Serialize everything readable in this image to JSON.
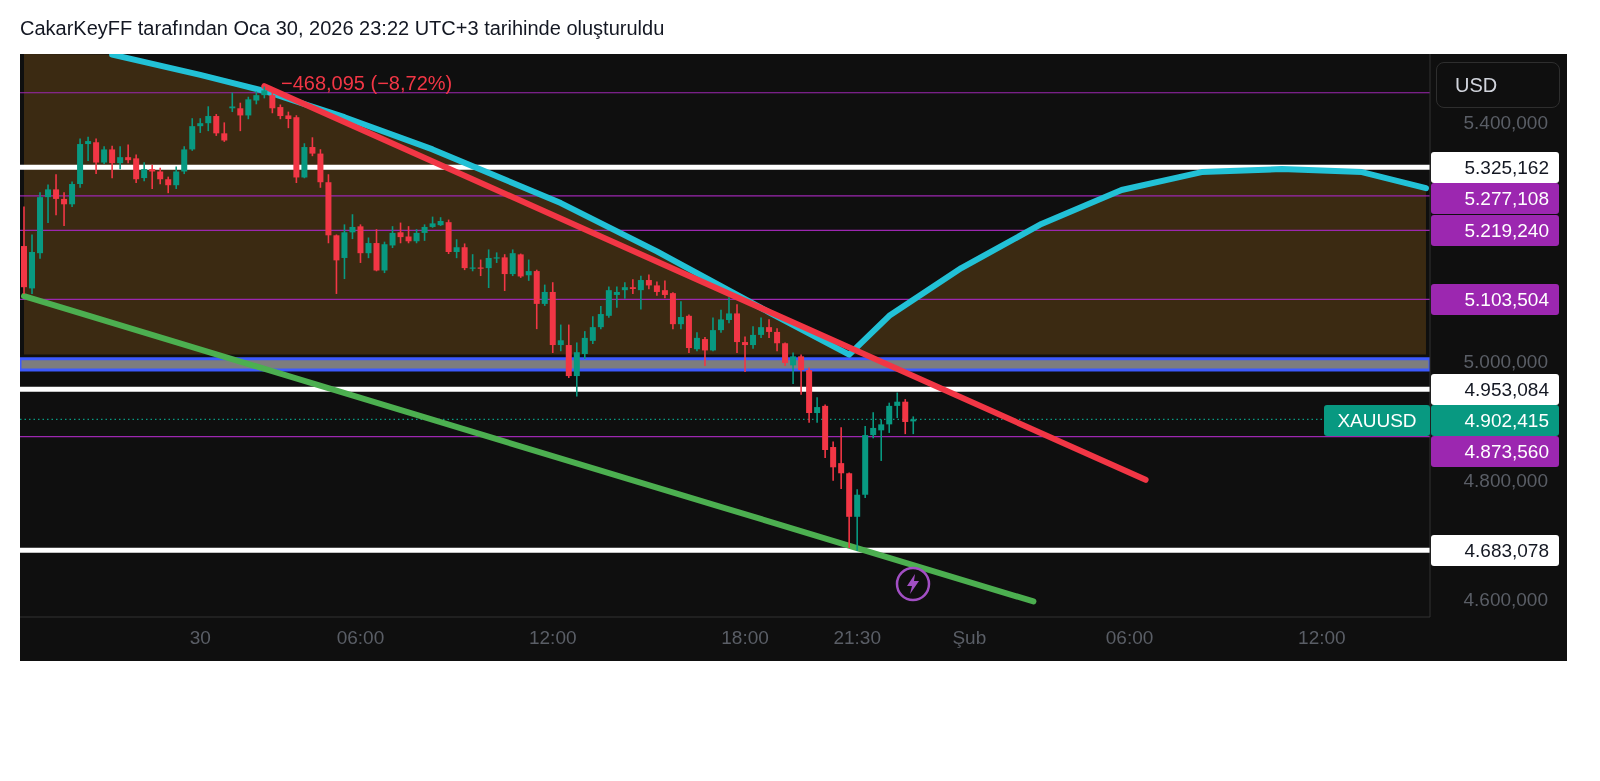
{
  "chart_data": {
    "type": "candlestick",
    "title": "CakarKeyFF tarafından Oca 30, 2026 23:22 UTC+3 tarihinde oluşturuldu",
    "annotations": [
      "−468,095 (−8,72%)",
      "USD"
    ],
    "categories": [
      null,
      null,
      null,
      null,
      null,
      null,
      null,
      null,
      null,
      null,
      null,
      null,
      null,
      null,
      null,
      null,
      null,
      null,
      null,
      null,
      null,
      null,
      "30",
      null,
      null,
      null,
      null,
      null,
      null,
      null,
      null,
      null,
      null,
      null,
      null,
      null,
      null,
      null,
      null,
      null,
      null,
      null,
      "06:00",
      null,
      null,
      null,
      null,
      null,
      null,
      null,
      null,
      null,
      null,
      null,
      null,
      null,
      null,
      null,
      null,
      null,
      null,
      null,
      null,
      null,
      null,
      null,
      "12:00",
      null,
      null,
      null,
      null,
      null,
      null,
      null,
      null,
      null,
      null,
      null,
      null,
      null,
      null,
      null,
      null,
      null,
      null,
      null,
      null,
      null,
      null,
      null,
      "18:00",
      null,
      null,
      null,
      null,
      null,
      null,
      null,
      null,
      null,
      null,
      null,
      null,
      null,
      "21:30",
      null,
      null,
      null,
      null,
      null,
      null,
      null,
      null,
      null,
      null,
      null,
      null,
      null,
      "Şub",
      null,
      null,
      null,
      null,
      null,
      null,
      null,
      null,
      null,
      null,
      null,
      null,
      null,
      null,
      null,
      null,
      null,
      null,
      null,
      "06:00",
      null,
      null,
      null,
      null,
      null,
      null,
      null,
      null,
      null,
      null,
      null,
      null,
      null,
      null,
      null,
      null,
      null,
      null,
      null,
      null,
      null,
      null,
      null,
      "12:00",
      null,
      null,
      null,
      null,
      null,
      null,
      null,
      null,
      null,
      null,
      null,
      null,
      null
    ],
    "ylim": [
      4571,
      5515
    ],
    "yticks": [
      {
        "value": 5400,
        "label": "5.400,000"
      },
      {
        "value": 5000,
        "label": "5.000,000"
      },
      {
        "value": 4800,
        "label": "4.800,000"
      },
      {
        "value": 4600,
        "label": "4.600,000"
      }
    ],
    "series": [
      {
        "name": "XAUUSD",
        "ohlc": [
          [
            5193,
            5258,
            5114,
            5124
          ],
          [
            5122,
            5211,
            5114,
            5183
          ],
          [
            5181,
            5282,
            5173,
            5275
          ],
          [
            5275,
            5295,
            5233,
            5288
          ],
          [
            5288,
            5312,
            5246,
            5272
          ],
          [
            5272,
            5282,
            5228,
            5263
          ],
          [
            5263,
            5300,
            5260,
            5297
          ],
          [
            5297,
            5372,
            5292,
            5364
          ],
          [
            5364,
            5375,
            5337,
            5369
          ],
          [
            5367,
            5372,
            5315,
            5333
          ],
          [
            5333,
            5359,
            5332,
            5355
          ],
          [
            5355,
            5360,
            5308,
            5332
          ],
          [
            5332,
            5359,
            5323,
            5342
          ],
          [
            5342,
            5362,
            5333,
            5337
          ],
          [
            5340,
            5345,
            5300,
            5305
          ],
          [
            5307,
            5332,
            5303,
            5322
          ],
          [
            5322,
            5328,
            5290,
            5318
          ],
          [
            5318,
            5323,
            5298,
            5305
          ],
          [
            5305,
            5308,
            5283,
            5295
          ],
          [
            5295,
            5325,
            5290,
            5318
          ],
          [
            5318,
            5359,
            5315,
            5355
          ],
          [
            5355,
            5406,
            5354,
            5394
          ],
          [
            5394,
            5406,
            5384,
            5399
          ],
          [
            5399,
            5426,
            5387,
            5411
          ],
          [
            5411,
            5413,
            5379,
            5382
          ],
          [
            5382,
            5399,
            5369,
            5370
          ],
          [
            5424,
            5449,
            5419,
            5427
          ],
          [
            5424,
            5432,
            5387,
            5412
          ],
          [
            5412,
            5442,
            5407,
            5439
          ],
          [
            5437,
            5451,
            5432,
            5446
          ],
          [
            5446,
            5459,
            5442,
            5454
          ],
          [
            5446,
            5454,
            5417,
            5424
          ],
          [
            5426,
            5429,
            5407,
            5411
          ],
          [
            5412,
            5417,
            5392,
            5406
          ],
          [
            5409,
            5411,
            5300,
            5308
          ],
          [
            5308,
            5364,
            5308,
            5359
          ],
          [
            5359,
            5374,
            5345,
            5348
          ],
          [
            5348,
            5354,
            5292,
            5300
          ],
          [
            5300,
            5312,
            5199,
            5211
          ],
          [
            5211,
            5211,
            5114,
            5169
          ],
          [
            5173,
            5228,
            5139,
            5216
          ],
          [
            5216,
            5245,
            5206,
            5225
          ],
          [
            5226,
            5228,
            5166,
            5181
          ],
          [
            5181,
            5206,
            5174,
            5198
          ],
          [
            5198,
            5220,
            5152,
            5152
          ],
          [
            5152,
            5199,
            5149,
            5196
          ],
          [
            5194,
            5225,
            5191,
            5215
          ],
          [
            5216,
            5231,
            5199,
            5208
          ],
          [
            5209,
            5225,
            5199,
            5201
          ],
          [
            5201,
            5220,
            5199,
            5215
          ],
          [
            5215,
            5228,
            5203,
            5225
          ],
          [
            5225,
            5241,
            5225,
            5231
          ],
          [
            5228,
            5240,
            5228,
            5235
          ],
          [
            5233,
            5236,
            5181,
            5183
          ],
          [
            5183,
            5203,
            5174,
            5191
          ],
          [
            5191,
            5196,
            5154,
            5156
          ],
          [
            5156,
            5178,
            5152,
            5157
          ],
          [
            5157,
            5169,
            5144,
            5156
          ],
          [
            5156,
            5186,
            5124,
            5173
          ],
          [
            5173,
            5181,
            5166,
            5174
          ],
          [
            5174,
            5178,
            5119,
            5146
          ],
          [
            5146,
            5186,
            5144,
            5181
          ],
          [
            5179,
            5179,
            5141,
            5142
          ],
          [
            5144,
            5169,
            5136,
            5151
          ],
          [
            5151,
            5152,
            5055,
            5096
          ],
          [
            5096,
            5127,
            5094,
            5116
          ],
          [
            5116,
            5131,
            5015,
            5027
          ],
          [
            5027,
            5060,
            5018,
            5035
          ],
          [
            5027,
            5060,
            4973,
            4975
          ],
          [
            4975,
            5030,
            4942,
            5015
          ],
          [
            5012,
            5049,
            5005,
            5039
          ],
          [
            5034,
            5074,
            5030,
            5057
          ],
          [
            5057,
            5091,
            5055,
            5079
          ],
          [
            5076,
            5124,
            5074,
            5119
          ],
          [
            5111,
            5124,
            5091,
            5116
          ],
          [
            5119,
            5131,
            5106,
            5124
          ],
          [
            5124,
            5136,
            5114,
            5121
          ],
          [
            5119,
            5142,
            5088,
            5136
          ],
          [
            5136,
            5144,
            5122,
            5127
          ],
          [
            5127,
            5132,
            5111,
            5116
          ],
          [
            5119,
            5134,
            5107,
            5111
          ],
          [
            5114,
            5114,
            5055,
            5062
          ],
          [
            5062,
            5099,
            5055,
            5074
          ],
          [
            5076,
            5077,
            5015,
            5022
          ],
          [
            5020,
            5047,
            5018,
            5039
          ],
          [
            5037,
            5039,
            4993,
            5018
          ],
          [
            5018,
            5072,
            5018,
            5052
          ],
          [
            5052,
            5085,
            5049,
            5070
          ],
          [
            5069,
            5106,
            5065,
            5080
          ],
          [
            5080,
            5094,
            5015,
            5032
          ],
          [
            5032,
            5040,
            4983,
            5027
          ],
          [
            5027,
            5057,
            5022,
            5044
          ],
          [
            5044,
            5072,
            5040,
            5057
          ],
          [
            5057,
            5069,
            5040,
            5049
          ],
          [
            5049,
            5054,
            5018,
            5030
          ],
          [
            5030,
            5030,
            4993,
            4997
          ],
          [
            4993,
            5013,
            4963,
            5008
          ],
          [
            5008,
            5010,
            4945,
            4985
          ],
          [
            4985,
            4988,
            4898,
            4913
          ],
          [
            4913,
            4938,
            4898,
            4923
          ],
          [
            4925,
            4926,
            4839,
            4851
          ],
          [
            4856,
            4864,
            4801,
            4822
          ],
          [
            4829,
            4888,
            4787,
            4812
          ],
          [
            4812,
            4812,
            4688,
            4739
          ],
          [
            4739,
            4784,
            4683,
            4776
          ],
          [
            4776,
            4890,
            4772,
            4876
          ],
          [
            4876,
            4913,
            4872,
            4888
          ],
          [
            4884,
            4901,
            4834,
            4894
          ],
          [
            4894,
            4929,
            4881,
            4925
          ],
          [
            4925,
            4946,
            4906,
            4932
          ],
          [
            4932,
            4935,
            4879,
            4898
          ],
          [
            4899,
            4906,
            4879,
            4902.415
          ],
          null,
          null,
          null,
          null,
          null,
          null,
          null,
          null,
          null,
          null,
          null,
          null,
          null,
          null,
          null,
          null,
          null,
          null,
          null,
          null,
          null,
          null,
          null,
          null,
          null,
          null,
          null,
          null,
          null,
          null,
          null,
          null,
          null,
          null,
          null,
          null,
          null,
          null,
          null,
          null,
          null,
          null,
          null,
          null,
          null,
          null,
          null,
          null,
          null,
          null,
          null,
          null,
          null,
          null,
          null,
          null,
          null,
          null,
          null,
          null,
          null,
          null,
          null,
          null
        ]
      },
      {
        "type": "line",
        "color": "#22c1d6",
        "values": [
          null,
          null,
          null,
          null,
          null,
          null,
          null,
          null,
          null,
          null,
          null,
          5514,
          null,
          null,
          null,
          null,
          null,
          null,
          null,
          null,
          null,
          null,
          5480,
          null,
          null,
          null,
          null,
          null,
          null,
          null,
          5453,
          null,
          null,
          null,
          null,
          null,
          null,
          null,
          null,
          null,
          5409,
          null,
          null,
          null,
          null,
          null,
          null,
          null,
          null,
          null,
          null,
          5355,
          null,
          null,
          null,
          null,
          null,
          null,
          null,
          null,
          null,
          null,
          null,
          null,
          null,
          null,
          null,
          5265,
          null,
          null,
          null,
          null,
          null,
          null,
          null,
          null,
          null,
          null,
          null,
          5184,
          null,
          null,
          null,
          null,
          null,
          null,
          null,
          null,
          null,
          null,
          null,
          null,
          null,
          5082,
          null,
          null,
          null,
          null,
          null,
          null,
          null,
          null,
          null,
          5011,
          null,
          null,
          null,
          null,
          5076,
          null,
          null,
          null,
          null,
          null,
          null,
          null,
          null,
          5156,
          null,
          null,
          null,
          null,
          null,
          null,
          null,
          null,
          null,
          5230,
          null,
          null,
          null,
          null,
          null,
          null,
          null,
          null,
          null,
          5287,
          null,
          null,
          null,
          null,
          null,
          null,
          null,
          null,
          null,
          5317,
          null,
          null,
          null,
          null,
          null,
          null,
          null,
          null,
          null,
          5322,
          null,
          null,
          null,
          null,
          null,
          null,
          null,
          null,
          null,
          5317,
          null,
          null,
          null,
          null,
          null,
          null,
          null,
          5290
        ],
        "lower": [
          5011,
          null,
          null,
          null,
          null,
          null,
          null,
          null,
          null,
          null,
          null,
          5011,
          null,
          null,
          null,
          null,
          null,
          null,
          null,
          null,
          null,
          null,
          5011,
          null,
          null,
          null,
          null,
          null,
          null,
          null,
          5011,
          null,
          null,
          null,
          null,
          null,
          null,
          null,
          null,
          null,
          5011,
          null,
          null,
          null,
          null,
          null,
          null,
          null,
          null,
          null,
          null,
          5011,
          null,
          null,
          null,
          null,
          null,
          null,
          null,
          null,
          null,
          null,
          null,
          null,
          null,
          null,
          null,
          5011,
          null,
          null,
          null,
          null,
          null,
          null,
          null,
          null,
          null,
          null,
          null,
          5011,
          null,
          null,
          null,
          null,
          null,
          null,
          null,
          null,
          null,
          null,
          null,
          null,
          null,
          5011,
          null,
          null,
          null,
          null,
          null,
          null,
          null,
          null,
          null,
          5011,
          null,
          null,
          null,
          null,
          5011,
          null,
          null,
          null,
          null,
          null,
          null,
          null,
          null,
          5011,
          null,
          null,
          null,
          null,
          null,
          null,
          null,
          null,
          null,
          5011,
          null,
          null,
          null,
          null,
          null,
          null,
          null,
          null,
          null,
          5011,
          null,
          null,
          null,
          null,
          null,
          null,
          null,
          null,
          null,
          5011,
          null,
          null,
          null,
          null,
          null,
          null,
          null,
          null,
          null,
          5011,
          null,
          null,
          null,
          null,
          null,
          null,
          null,
          null,
          null,
          5011,
          null,
          null,
          null,
          null,
          null,
          null,
          null,
          5011
        ],
        "upper": [
          5515,
          null,
          null,
          null,
          null,
          null,
          null,
          null,
          null,
          null,
          null,
          5514,
          null,
          null,
          null,
          null,
          null,
          null,
          null,
          null,
          null,
          null,
          5480,
          null,
          null,
          null,
          null,
          null,
          null,
          null,
          5453,
          null,
          null,
          null,
          null,
          null,
          null,
          null,
          null,
          null,
          5409,
          null,
          null,
          null,
          null,
          null,
          null,
          null,
          null,
          null,
          null,
          5355,
          null,
          null,
          null,
          null,
          null,
          null,
          null,
          null,
          null,
          null,
          null,
          null,
          null,
          null,
          null,
          5265,
          null,
          null,
          null,
          null,
          null,
          null,
          null,
          null,
          null,
          null,
          null,
          5184,
          null,
          null,
          null,
          null,
          null,
          null,
          null,
          null,
          null,
          null,
          null,
          null,
          null,
          5082,
          null,
          null,
          null,
          null,
          null,
          null,
          null,
          null,
          null,
          5011,
          null,
          null,
          null,
          null,
          5076,
          null,
          null,
          null,
          null,
          null,
          null,
          null,
          null,
          5156,
          null,
          null,
          null,
          null,
          null,
          null,
          null,
          null,
          null,
          5230,
          null,
          null,
          null,
          null,
          null,
          null,
          null,
          null,
          null,
          5287,
          null,
          null,
          null,
          null,
          null,
          null,
          null,
          null,
          null,
          5317,
          null,
          null,
          null,
          null,
          null,
          null,
          null,
          null,
          null,
          5322,
          null,
          null,
          null,
          null,
          null,
          null,
          null,
          null,
          null,
          5317,
          null,
          null,
          null,
          null,
          null,
          null,
          null,
          5290
        ]
      },
      {
        "type": "line",
        "color": "#f23645",
        "values": [
          null,
          null,
          null,
          null,
          null,
          null,
          null,
          null,
          null,
          null,
          null,
          null,
          null,
          null,
          null,
          null,
          null,
          null,
          null,
          null,
          null,
          null,
          null,
          null,
          null,
          null,
          null,
          null,
          null,
          null,
          5461,
          null,
          null,
          null,
          null,
          null,
          null,
          null,
          null,
          null,
          null,
          null,
          null,
          null,
          null,
          null,
          null,
          null,
          null,
          null,
          null,
          null,
          null,
          null,
          null,
          null,
          null,
          null,
          null,
          null,
          null,
          null,
          null,
          null,
          null,
          null,
          null,
          null,
          null,
          null,
          null,
          null,
          null,
          null,
          null,
          null,
          null,
          null,
          null,
          null,
          null,
          null,
          null,
          null,
          null,
          null,
          null,
          null,
          null,
          null,
          null,
          null,
          null,
          null,
          null,
          null,
          null,
          null,
          null,
          null,
          null,
          null,
          null,
          null,
          null,
          null,
          null,
          null,
          null,
          null,
          null,
          null,
          null,
          null,
          null,
          null,
          null,
          null,
          null,
          null,
          null,
          null,
          null,
          null,
          null,
          null,
          null,
          null,
          null,
          null,
          null,
          null,
          null,
          null,
          null,
          null,
          null,
          null,
          null,
          null,
          4801,
          null,
          null,
          null,
          null,
          null,
          null,
          null,
          null,
          null,
          null,
          null,
          null,
          null,
          null,
          null,
          null,
          null,
          null,
          null,
          null,
          null,
          null,
          null,
          null,
          null,
          null,
          null,
          null,
          null,
          null,
          null,
          null,
          null,
          null,
          null
        ]
      },
      {
        "type": "line",
        "color": "#4caf50",
        "values": [
          5109,
          null,
          null,
          null,
          null,
          null,
          null,
          null,
          null,
          null,
          null,
          null,
          null,
          null,
          null,
          null,
          null,
          null,
          null,
          null,
          null,
          null,
          null,
          null,
          null,
          null,
          null,
          null,
          null,
          null,
          null,
          null,
          null,
          null,
          null,
          null,
          null,
          null,
          null,
          null,
          null,
          null,
          null,
          null,
          null,
          null,
          null,
          null,
          null,
          null,
          null,
          null,
          null,
          null,
          null,
          null,
          null,
          null,
          null,
          null,
          null,
          null,
          null,
          null,
          null,
          null,
          null,
          null,
          null,
          null,
          null,
          null,
          null,
          null,
          null,
          null,
          null,
          null,
          null,
          null,
          null,
          null,
          null,
          null,
          null,
          null,
          null,
          null,
          null,
          null,
          null,
          null,
          null,
          null,
          null,
          null,
          null,
          null,
          null,
          null,
          null,
          null,
          null,
          null,
          null,
          null,
          null,
          null,
          null,
          null,
          null,
          null,
          null,
          null,
          null,
          null,
          null,
          null,
          null,
          null,
          null,
          null,
          null,
          null,
          null,
          null,
          4597,
          null,
          null,
          null,
          null,
          null,
          null,
          null,
          null,
          null,
          null,
          null,
          null,
          null,
          null,
          null,
          null,
          null,
          null,
          null,
          null,
          null,
          null,
          null,
          null,
          null,
          null,
          null,
          null,
          null,
          null,
          null,
          null,
          null,
          null,
          null,
          null,
          null,
          null,
          null,
          null,
          null,
          null,
          null,
          null,
          null,
          null,
          null,
          null,
          null
        ]
      }
    ],
    "ref_lines": [
      {
        "axis": "y",
        "value": 5450,
        "color": "#9c27b0"
      },
      {
        "axis": "y",
        "value": 5325.162,
        "label": "5.325,162",
        "color": "#ffffff"
      },
      {
        "axis": "y",
        "value": 5277.108,
        "label": "5.277,108",
        "color": "#9c27b0"
      },
      {
        "axis": "y",
        "value": 5219.24,
        "label": "5.219,240",
        "color": "#9c27b0"
      },
      {
        "axis": "y",
        "value": 5103.504,
        "label": "5.103,504",
        "color": "#9c27b0"
      },
      {
        "axis": "y",
        "value": 4953.084,
        "label": "4.953,084",
        "color": "#ffffff"
      },
      {
        "axis": "y",
        "value": 4902.415,
        "label": "4.902,415",
        "color": "#089981",
        "line_style": "dotted"
      },
      {
        "axis": "y",
        "value": 4873.56,
        "label": "4.873,560",
        "color": "#9c27b0"
      },
      {
        "axis": "y",
        "value": 4683.078,
        "label": "4.683,078",
        "color": "#ffffff"
      }
    ],
    "bands": [
      {
        "axis": "y",
        "from": 4985,
        "to": 5004,
        "color": "#3d5afe"
      }
    ]
  }
}
